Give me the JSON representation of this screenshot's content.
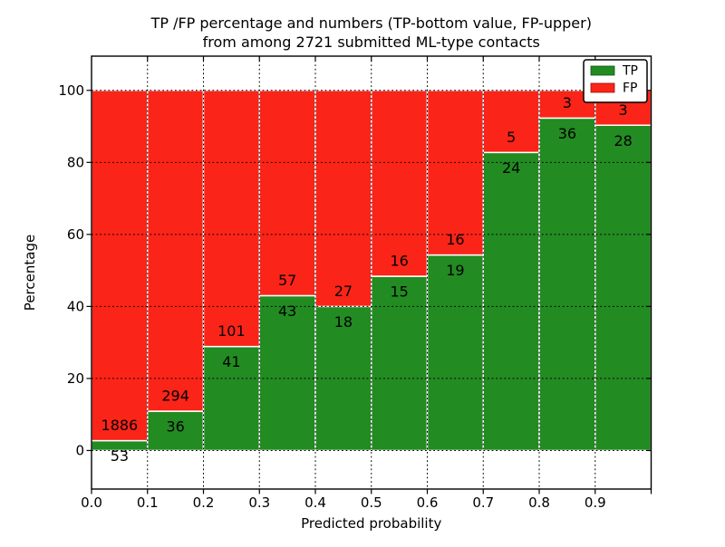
{
  "chart_data": {
    "type": "bar",
    "stacked": true,
    "normalized_to_percent": true,
    "title_line1": "TP /FP percentage and numbers (TP-bottom value, FP-upper)",
    "title_line2": "from among 2721 submitted ML-type contacts",
    "total_contacts": "2721",
    "xlabel": "Predicted probability",
    "ylabel": "Percentage",
    "bin_width": 0.1,
    "bin_starts": [
      0.0,
      0.1,
      0.2,
      0.3,
      0.4,
      0.5,
      0.6,
      0.7,
      0.8,
      0.9
    ],
    "series": [
      {
        "name": "TP",
        "color": "#228B22",
        "edge_color": "#ffffff",
        "counts": [
          53,
          36,
          41,
          43,
          18,
          15,
          19,
          24,
          36,
          28
        ]
      },
      {
        "name": "FP",
        "color": "#FA2418",
        "edge_color": "#ffffff",
        "counts": [
          1886,
          294,
          101,
          57,
          27,
          16,
          16,
          5,
          3,
          3
        ]
      }
    ],
    "tp_percent_of_bin": [
      2.73,
      10.91,
      28.87,
      43.0,
      40.0,
      48.39,
      54.29,
      82.76,
      92.31,
      90.32
    ],
    "x_tick_labels": [
      "0.0",
      "0.1",
      "0.2",
      "0.3",
      "0.4",
      "0.5",
      "0.6",
      "0.7",
      "0.8",
      "0.9"
    ],
    "y_tick_values": [
      0,
      20,
      40,
      60,
      80,
      100
    ],
    "y_tick_labels": [
      "0",
      "20",
      "40",
      "60",
      "80",
      "100"
    ],
    "xlim": [
      0.0,
      1.0
    ],
    "ylim": [
      -10.7,
      109.5
    ],
    "grid": "dotted",
    "grid_color": "#000000",
    "frame_color": "#000000",
    "background_color": "#ffffff",
    "legend": {
      "position": "upper-right",
      "entries": [
        {
          "label": "TP",
          "color": "#228B22"
        },
        {
          "label": "FP",
          "color": "#FA2418"
        }
      ]
    }
  }
}
